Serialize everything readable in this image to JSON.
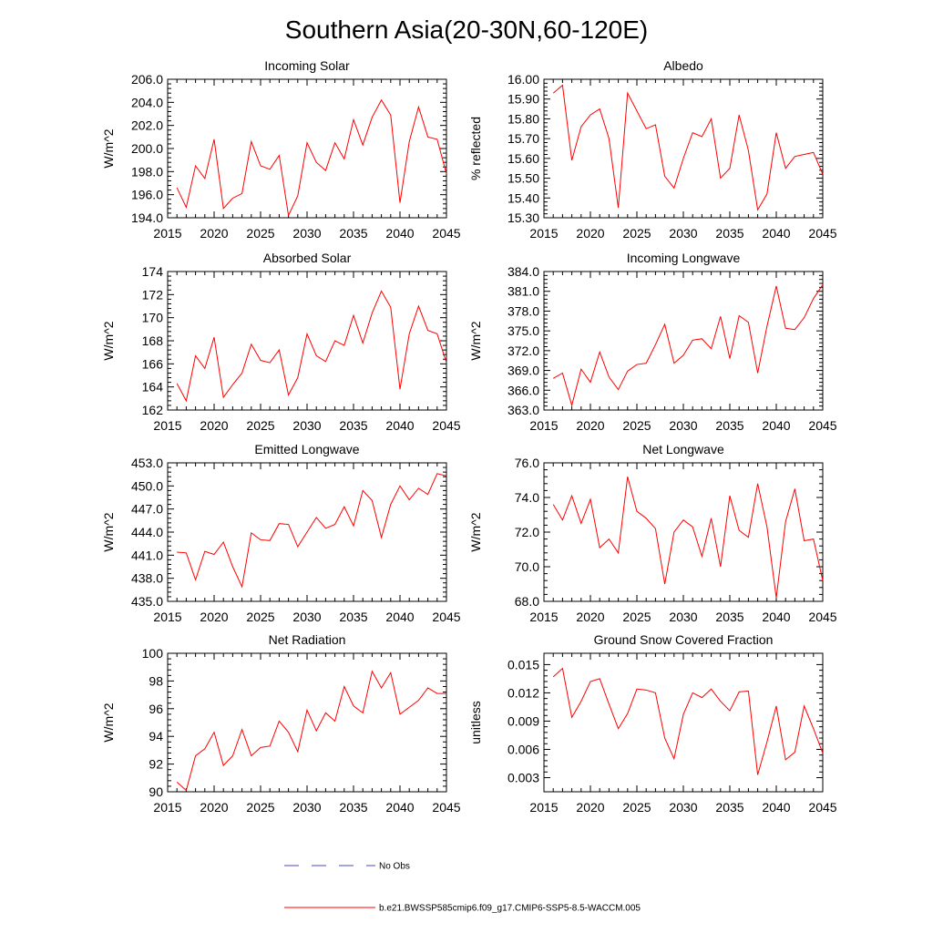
{
  "title": "Southern Asia(20-30N,60-120E)",
  "colors": {
    "model": "#ff0000",
    "obs": "#4a4ac8",
    "axis": "#000000"
  },
  "legend": {
    "obs_label": "No Obs",
    "model_label": "b.e21.BWSSP585cmip6.f09_g17.CMIP6-SSP5-8.5-WACCM.005"
  },
  "chart_data": [
    {
      "type": "line",
      "title": "Incoming Solar",
      "ylabel": "W/m^2",
      "xlim": [
        2015,
        2045
      ],
      "xticks": [
        2015,
        2020,
        2025,
        2030,
        2035,
        2040,
        2045
      ],
      "xtick_labels": [
        "2015",
        "2020",
        "2025",
        "2030",
        "2035",
        "2040",
        "2045"
      ],
      "ylim": [
        194.0,
        206.0
      ],
      "yticks": [
        194.0,
        196.0,
        198.0,
        200.0,
        202.0,
        204.0,
        206.0
      ],
      "ytick_labels": [
        "194.0",
        "196.0",
        "198.0",
        "200.0",
        "202.0",
        "204.0",
        "206.0"
      ],
      "x": [
        2016,
        2017,
        2018,
        2019,
        2020,
        2021,
        2022,
        2023,
        2024,
        2025,
        2026,
        2027,
        2028,
        2029,
        2030,
        2031,
        2032,
        2033,
        2034,
        2035,
        2036,
        2037,
        2038,
        2039,
        2040,
        2041,
        2042,
        2043,
        2044,
        2045
      ],
      "values": [
        196.6,
        194.9,
        198.5,
        197.4,
        200.8,
        194.8,
        195.7,
        196.1,
        200.6,
        198.5,
        198.2,
        199.4,
        194.2,
        195.9,
        200.5,
        198.8,
        198.1,
        200.5,
        199.1,
        202.5,
        200.3,
        202.7,
        204.2,
        202.9,
        195.3,
        200.6,
        203.6,
        201.0,
        200.8,
        197.8
      ]
    },
    {
      "type": "line",
      "title": "Albedo",
      "ylabel": "% reflected",
      "xlim": [
        2015,
        2045
      ],
      "xticks": [
        2015,
        2020,
        2025,
        2030,
        2035,
        2040,
        2045
      ],
      "xtick_labels": [
        "2015",
        "2020",
        "2025",
        "2030",
        "2035",
        "2040",
        "2045"
      ],
      "ylim": [
        15.3,
        16.0
      ],
      "yticks": [
        15.3,
        15.4,
        15.5,
        15.6,
        15.7,
        15.8,
        15.9,
        16.0
      ],
      "ytick_labels": [
        "15.30",
        "15.40",
        "15.50",
        "15.60",
        "15.70",
        "15.80",
        "15.90",
        "16.00"
      ],
      "x": [
        2016,
        2017,
        2018,
        2019,
        2020,
        2021,
        2022,
        2023,
        2024,
        2025,
        2026,
        2027,
        2028,
        2029,
        2030,
        2031,
        2032,
        2033,
        2034,
        2035,
        2036,
        2037,
        2038,
        2039,
        2040,
        2041,
        2042,
        2043,
        2044,
        2045
      ],
      "values": [
        15.93,
        15.97,
        15.59,
        15.76,
        15.82,
        15.85,
        15.7,
        15.35,
        15.93,
        15.84,
        15.75,
        15.77,
        15.51,
        15.45,
        15.6,
        15.73,
        15.71,
        15.8,
        15.5,
        15.55,
        15.82,
        15.64,
        15.34,
        15.42,
        15.73,
        15.55,
        15.61,
        15.62,
        15.63,
        15.52
      ]
    },
    {
      "type": "line",
      "title": "Absorbed Solar",
      "ylabel": "W/m^2",
      "xlim": [
        2015,
        2045
      ],
      "xticks": [
        2015,
        2020,
        2025,
        2030,
        2035,
        2040,
        2045
      ],
      "xtick_labels": [
        "2015",
        "2020",
        "2025",
        "2030",
        "2035",
        "2040",
        "2045"
      ],
      "ylim": [
        162,
        174
      ],
      "yticks": [
        162,
        164,
        166,
        168,
        170,
        172,
        174
      ],
      "ytick_labels": [
        "162",
        "164",
        "166",
        "168",
        "170",
        "172",
        "174"
      ],
      "x": [
        2016,
        2017,
        2018,
        2019,
        2020,
        2021,
        2022,
        2023,
        2024,
        2025,
        2026,
        2027,
        2028,
        2029,
        2030,
        2031,
        2032,
        2033,
        2034,
        2035,
        2036,
        2037,
        2038,
        2039,
        2040,
        2041,
        2042,
        2043,
        2044,
        2045
      ],
      "values": [
        164.3,
        162.8,
        166.7,
        165.6,
        168.3,
        163.1,
        164.2,
        165.2,
        167.7,
        166.3,
        166.1,
        167.2,
        163.3,
        164.8,
        168.6,
        166.7,
        166.2,
        168.0,
        167.6,
        170.2,
        167.8,
        170.4,
        172.3,
        170.9,
        163.8,
        168.6,
        171.0,
        168.9,
        168.6,
        166.1
      ]
    },
    {
      "type": "line",
      "title": "Incoming Longwave",
      "ylabel": "W/m^2",
      "xlim": [
        2015,
        2045
      ],
      "xticks": [
        2015,
        2020,
        2025,
        2030,
        2035,
        2040,
        2045
      ],
      "xtick_labels": [
        "2015",
        "2020",
        "2025",
        "2030",
        "2035",
        "2040",
        "2045"
      ],
      "ylim": [
        363.0,
        384.0
      ],
      "yticks": [
        363.0,
        366.0,
        369.0,
        372.0,
        375.0,
        378.0,
        381.0,
        384.0
      ],
      "ytick_labels": [
        "363.0",
        "366.0",
        "369.0",
        "372.0",
        "375.0",
        "378.0",
        "381.0",
        "384.0"
      ],
      "x": [
        2016,
        2017,
        2018,
        2019,
        2020,
        2021,
        2022,
        2023,
        2024,
        2025,
        2026,
        2027,
        2028,
        2029,
        2030,
        2031,
        2032,
        2033,
        2034,
        2035,
        2036,
        2037,
        2038,
        2039,
        2040,
        2041,
        2042,
        2043,
        2044,
        2045
      ],
      "values": [
        367.8,
        368.6,
        363.7,
        369.2,
        367.2,
        371.8,
        368.0,
        366.1,
        368.9,
        369.9,
        370.1,
        372.9,
        376.0,
        370.1,
        371.3,
        373.6,
        373.8,
        372.3,
        377.2,
        370.8,
        377.3,
        376.3,
        368.6,
        375.7,
        381.8,
        375.4,
        375.2,
        377.0,
        379.9,
        382.0
      ]
    },
    {
      "type": "line",
      "title": "Emitted Longwave",
      "ylabel": "W/m^2",
      "xlim": [
        2015,
        2045
      ],
      "xticks": [
        2015,
        2020,
        2025,
        2030,
        2035,
        2040,
        2045
      ],
      "xtick_labels": [
        "2015",
        "2020",
        "2025",
        "2030",
        "2035",
        "2040",
        "2045"
      ],
      "ylim": [
        435.0,
        453.0
      ],
      "yticks": [
        435.0,
        438.0,
        441.0,
        444.0,
        447.0,
        450.0,
        453.0
      ],
      "ytick_labels": [
        "435.0",
        "438.0",
        "441.0",
        "444.0",
        "447.0",
        "450.0",
        "453.0"
      ],
      "x": [
        2016,
        2017,
        2018,
        2019,
        2020,
        2021,
        2022,
        2023,
        2024,
        2025,
        2026,
        2027,
        2028,
        2029,
        2030,
        2031,
        2032,
        2033,
        2034,
        2035,
        2036,
        2037,
        2038,
        2039,
        2040,
        2041,
        2042,
        2043,
        2044,
        2045
      ],
      "values": [
        441.4,
        441.3,
        437.8,
        441.5,
        441.1,
        442.7,
        439.5,
        436.9,
        443.9,
        443.0,
        442.9,
        445.1,
        445.0,
        442.1,
        444.0,
        445.9,
        444.5,
        445.0,
        447.3,
        444.8,
        449.4,
        448.1,
        443.3,
        447.6,
        450.0,
        448.2,
        449.7,
        448.9,
        451.6,
        451.3
      ]
    },
    {
      "type": "line",
      "title": "Net Longwave",
      "ylabel": "W/m^2",
      "xlim": [
        2015,
        2045
      ],
      "xticks": [
        2015,
        2020,
        2025,
        2030,
        2035,
        2040,
        2045
      ],
      "xtick_labels": [
        "2015",
        "2020",
        "2025",
        "2030",
        "2035",
        "2040",
        "2045"
      ],
      "ylim": [
        68.0,
        76.0
      ],
      "yticks": [
        68.0,
        70.0,
        72.0,
        74.0,
        76.0
      ],
      "ytick_labels": [
        "68.0",
        "70.0",
        "72.0",
        "74.0",
        "76.0"
      ],
      "x": [
        2016,
        2017,
        2018,
        2019,
        2020,
        2021,
        2022,
        2023,
        2024,
        2025,
        2026,
        2027,
        2028,
        2029,
        2030,
        2031,
        2032,
        2033,
        2034,
        2035,
        2036,
        2037,
        2038,
        2039,
        2040,
        2041,
        2042,
        2043,
        2044,
        2045
      ],
      "values": [
        73.6,
        72.7,
        74.1,
        72.5,
        73.9,
        71.1,
        71.6,
        70.8,
        75.2,
        73.2,
        72.8,
        72.2,
        69.0,
        72.0,
        72.7,
        72.3,
        70.6,
        72.8,
        70.0,
        74.1,
        72.1,
        71.7,
        74.8,
        72.3,
        68.2,
        72.6,
        74.5,
        71.5,
        71.6,
        69.2
      ]
    },
    {
      "type": "line",
      "title": "Net Radiation",
      "ylabel": "W/m^2",
      "xlim": [
        2015,
        2045
      ],
      "xticks": [
        2015,
        2020,
        2025,
        2030,
        2035,
        2040,
        2045
      ],
      "xtick_labels": [
        "2015",
        "2020",
        "2025",
        "2030",
        "2035",
        "2040",
        "2045"
      ],
      "ylim": [
        90,
        100
      ],
      "yticks": [
        90,
        92,
        94,
        96,
        98,
        100
      ],
      "ytick_labels": [
        "90",
        "92",
        "94",
        "96",
        "98",
        "100"
      ],
      "x": [
        2016,
        2017,
        2018,
        2019,
        2020,
        2021,
        2022,
        2023,
        2024,
        2025,
        2026,
        2027,
        2028,
        2029,
        2030,
        2031,
        2032,
        2033,
        2034,
        2035,
        2036,
        2037,
        2038,
        2039,
        2040,
        2041,
        2042,
        2043,
        2044,
        2045
      ],
      "values": [
        90.7,
        90.1,
        92.6,
        93.1,
        94.3,
        91.9,
        92.6,
        94.5,
        92.6,
        93.2,
        93.3,
        95.1,
        94.3,
        92.9,
        95.9,
        94.4,
        95.7,
        95.1,
        97.6,
        96.2,
        95.7,
        98.7,
        97.5,
        98.6,
        95.6,
        96.1,
        96.6,
        97.5,
        97.1,
        97.1
      ]
    },
    {
      "type": "line",
      "title": "Ground Snow Covered Fraction",
      "ylabel": "unitless",
      "xlim": [
        2015,
        2045
      ],
      "xticks": [
        2015,
        2020,
        2025,
        2030,
        2035,
        2040,
        2045
      ],
      "xtick_labels": [
        "2015",
        "2020",
        "2025",
        "2030",
        "2035",
        "2040",
        "2045"
      ],
      "ylim": [
        0.0015,
        0.0162
      ],
      "yticks": [
        0.003,
        0.006,
        0.009,
        0.012,
        0.015
      ],
      "ytick_labels": [
        "0.003",
        "0.006",
        "0.009",
        "0.012",
        "0.015"
      ],
      "x": [
        2016,
        2017,
        2018,
        2019,
        2020,
        2021,
        2022,
        2023,
        2024,
        2025,
        2026,
        2027,
        2028,
        2029,
        2030,
        2031,
        2032,
        2033,
        2034,
        2035,
        2036,
        2037,
        2038,
        2039,
        2040,
        2041,
        2042,
        2043,
        2044,
        2045
      ],
      "values": [
        0.0137,
        0.0146,
        0.0094,
        0.0111,
        0.0132,
        0.0135,
        0.0108,
        0.0082,
        0.0098,
        0.0124,
        0.0123,
        0.012,
        0.0072,
        0.005,
        0.0097,
        0.012,
        0.0115,
        0.0124,
        0.0111,
        0.0101,
        0.0121,
        0.0122,
        0.0033,
        0.0068,
        0.0106,
        0.0049,
        0.0057,
        0.0106,
        0.0082,
        0.0056
      ]
    }
  ]
}
